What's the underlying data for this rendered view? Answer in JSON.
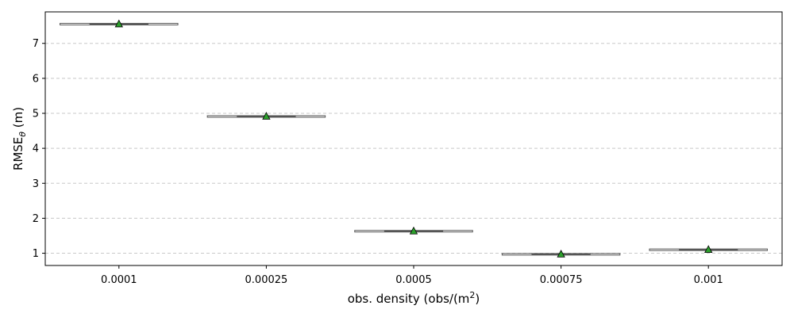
{
  "chart_data": {
    "type": "box",
    "categories": [
      "0.0001",
      "0.00025",
      "0.0005",
      "0.00075",
      "0.001"
    ],
    "values": [
      7.55,
      4.91,
      1.63,
      0.97,
      1.1
    ],
    "xlabel_main": "obs. density (obs/(m",
    "xlabel_sup": "2",
    "xlabel_close": ")",
    "ylabel_main": "RMSE",
    "ylabel_sub": "θ",
    "ylabel_unit": " (m)",
    "y_ticks": [
      1,
      2,
      3,
      4,
      5,
      6,
      7
    ],
    "ylim": [
      0.65,
      7.9
    ],
    "grid": "y-dashed",
    "mean_marker": "triangle",
    "colors": {
      "mean_marker": "#2ca02c",
      "box_line": "#555555",
      "grid": "#c8c8c8"
    }
  }
}
